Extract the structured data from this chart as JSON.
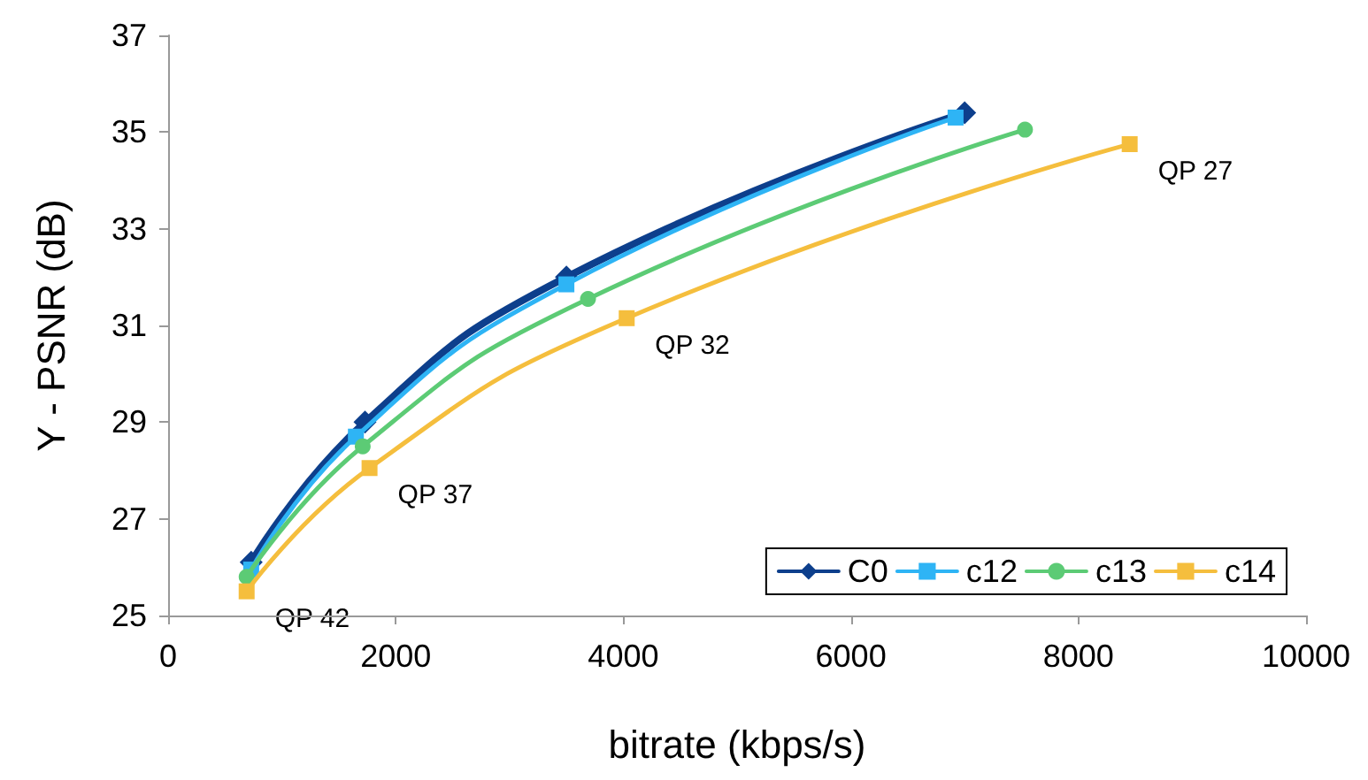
{
  "chart_data": {
    "type": "line",
    "xlabel": "bitrate (kbps/s)",
    "ylabel": "Y - PSNR (dB)",
    "xlim": [
      0,
      10000
    ],
    "xticks": [
      0,
      2000,
      4000,
      6000,
      8000,
      10000
    ],
    "ylim": [
      25,
      37
    ],
    "yticks": [
      25,
      27,
      29,
      31,
      33,
      35,
      37
    ],
    "grid": false,
    "legend": "bottom right",
    "series": [
      {
        "name": "C0",
        "color": "#0d3f8c",
        "marker": "diamond",
        "x": [
          730,
          1730,
          3500,
          7000
        ],
        "values": [
          26.1,
          29.0,
          32.0,
          35.4
        ]
      },
      {
        "name": "c12",
        "color": "#2eb4f5",
        "marker": "square",
        "x": [
          730,
          1650,
          3500,
          6920
        ],
        "values": [
          25.95,
          28.7,
          31.85,
          35.3
        ]
      },
      {
        "name": "c13",
        "color": "#5ccb75",
        "marker": "circle",
        "x": [
          690,
          1710,
          3690,
          7530
        ],
        "values": [
          25.8,
          28.5,
          31.55,
          35.05
        ]
      },
      {
        "name": "c14",
        "color": "#f5be3d",
        "marker": "square",
        "x": [
          690,
          1770,
          4030,
          8450
        ],
        "values": [
          25.5,
          28.05,
          31.15,
          34.75
        ]
      }
    ],
    "annotations": [
      {
        "text": "QP 42",
        "x": 690,
        "y": 25.5
      },
      {
        "text": "QP 37",
        "x": 1770,
        "y": 28.05
      },
      {
        "text": "QP 32",
        "x": 4030,
        "y": 31.15
      },
      {
        "text": "QP 27",
        "x": 8450,
        "y": 34.75
      }
    ]
  }
}
